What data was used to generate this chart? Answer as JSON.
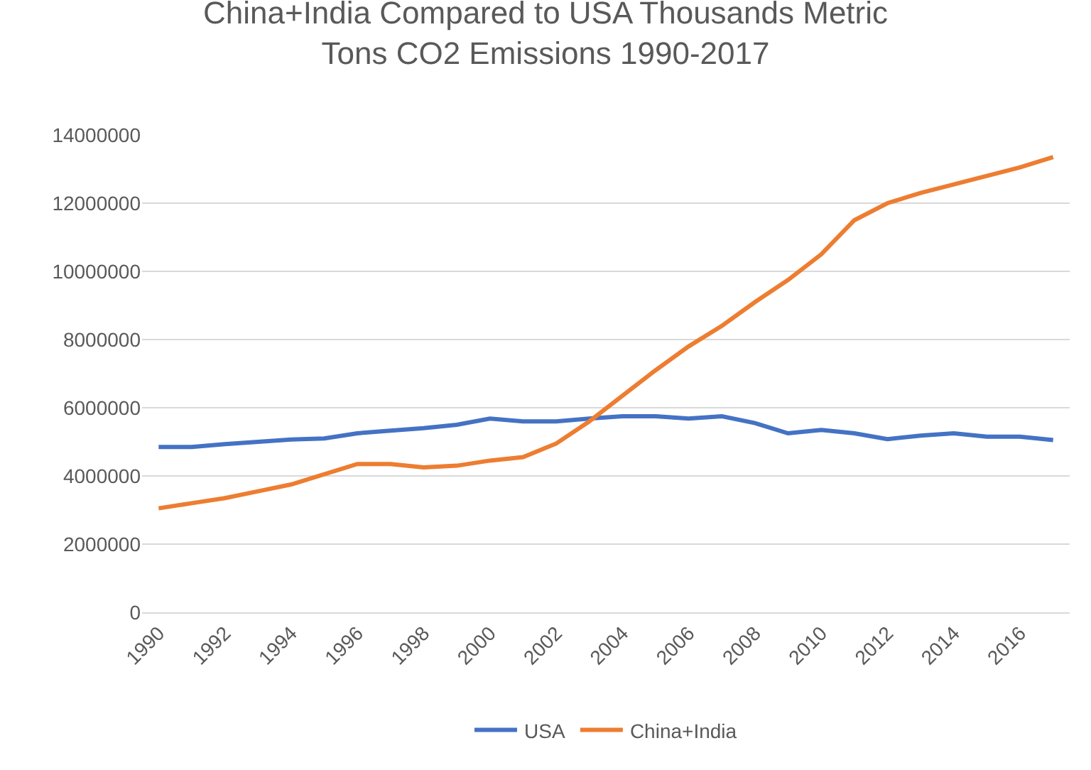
{
  "chart_data": {
    "type": "line",
    "title": "China+India Compared to USA Thousands Metric\nTons CO2 Emissions 1990-2017",
    "categories": [
      "1990",
      null,
      "1992",
      null,
      "1994",
      null,
      "1996",
      null,
      "1998",
      null,
      "2000",
      null,
      "2002",
      null,
      "2004",
      null,
      "2006",
      null,
      "2008",
      null,
      "2010",
      null,
      "2012",
      null,
      "2014",
      null,
      "2016",
      null
    ],
    "series": [
      {
        "name": "USA",
        "color": "#4472c4",
        "values": [
          4850000,
          4850000,
          4930000,
          5000000,
          5070000,
          5100000,
          5250000,
          5330000,
          5400000,
          5500000,
          5680000,
          5600000,
          5600000,
          5680000,
          5750000,
          5750000,
          5680000,
          5750000,
          5550000,
          5250000,
          5350000,
          5250000,
          5080000,
          5180000,
          5250000,
          5150000,
          5150000,
          5050000
        ]
      },
      {
        "name": "China+India",
        "color": "#ed7d31",
        "values": [
          3050000,
          3200000,
          3350000,
          3550000,
          3750000,
          4050000,
          4350000,
          4350000,
          4250000,
          4300000,
          4450000,
          4550000,
          4950000,
          5600000,
          6350000,
          7100000,
          7800000,
          8400000,
          9100000,
          9750000,
          10500000,
          11500000,
          12000000,
          12300000,
          12550000,
          12800000,
          13050000,
          13350000
        ]
      }
    ],
    "ylim": [
      0,
      14000000
    ],
    "yticks": [
      0,
      2000000,
      4000000,
      6000000,
      8000000,
      10000000,
      12000000,
      14000000
    ],
    "grid": "y",
    "legend": "bottom",
    "marker": "none",
    "line_style": "solid"
  }
}
